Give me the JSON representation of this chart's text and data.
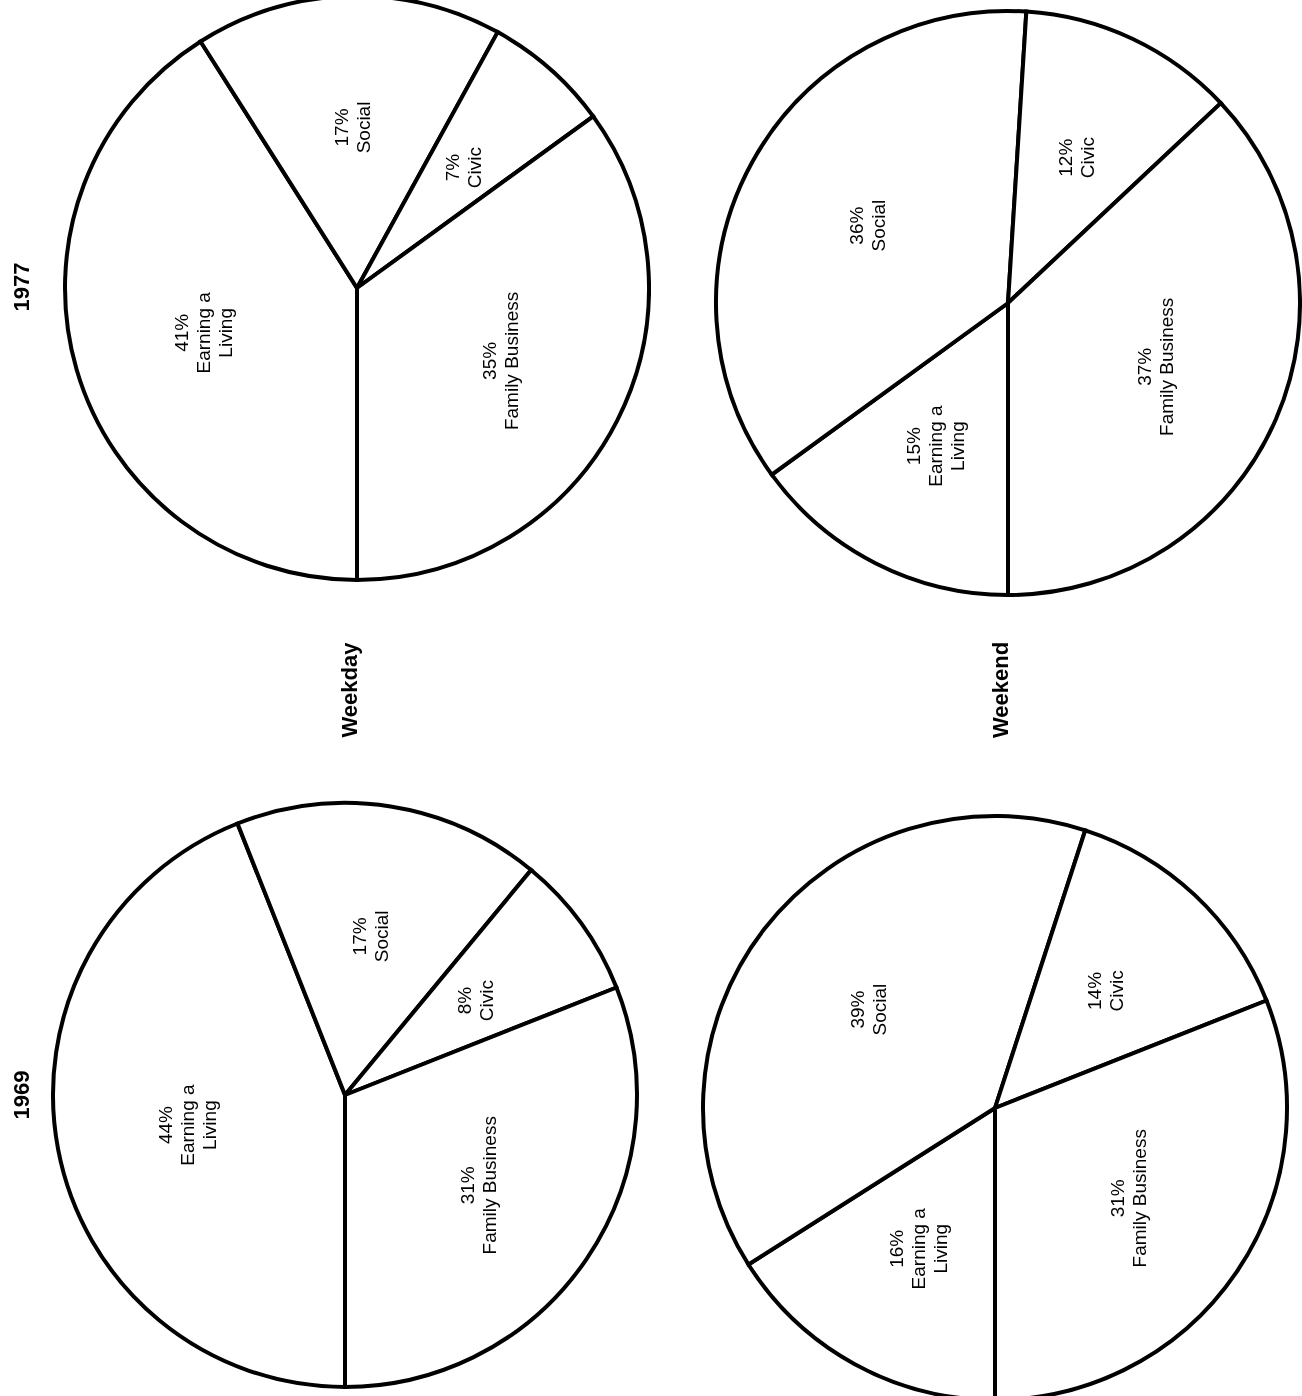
{
  "chart_data": [
    {
      "type": "pie",
      "title": "1969",
      "annotations": [
        "Weekday"
      ],
      "categories": [
        "Earning a Living",
        "Social",
        "Civic",
        "Family Business"
      ],
      "values": [
        44,
        17,
        8,
        31
      ],
      "value_labels": [
        "44%",
        "17%",
        "8%",
        "31%"
      ],
      "colors": [
        "#ffffff",
        "#ffffff",
        "#ffffff",
        "#ffffff"
      ]
    },
    {
      "type": "pie",
      "title": "1977",
      "categories": [
        "Earning a Living",
        "Social",
        "Civic",
        "Family Business"
      ],
      "values": [
        41,
        17,
        7,
        35
      ],
      "value_labels": [
        "41%",
        "17%",
        "7%",
        "35%"
      ],
      "colors": [
        "#ffffff",
        "#ffffff",
        "#ffffff",
        "#ffffff"
      ]
    },
    {
      "type": "pie",
      "annotations": [
        "Weekend"
      ],
      "categories": [
        "Earning a Living",
        "Social",
        "Civic",
        "Family Business"
      ],
      "values": [
        16,
        39,
        14,
        31
      ],
      "value_labels": [
        "16%",
        "39%",
        "14%",
        "31%"
      ],
      "colors": [
        "#ffffff",
        "#ffffff",
        "#ffffff",
        "#ffffff"
      ]
    },
    {
      "type": "pie",
      "categories": [
        "Earning a Living",
        "Social",
        "Civic",
        "Family Business"
      ],
      "values": [
        15,
        36,
        12,
        37
      ],
      "value_labels": [
        "15%",
        "36%",
        "12%",
        "37%"
      ],
      "colors": [
        "#ffffff",
        "#ffffff",
        "#ffffff",
        "#ffffff"
      ]
    }
  ]
}
